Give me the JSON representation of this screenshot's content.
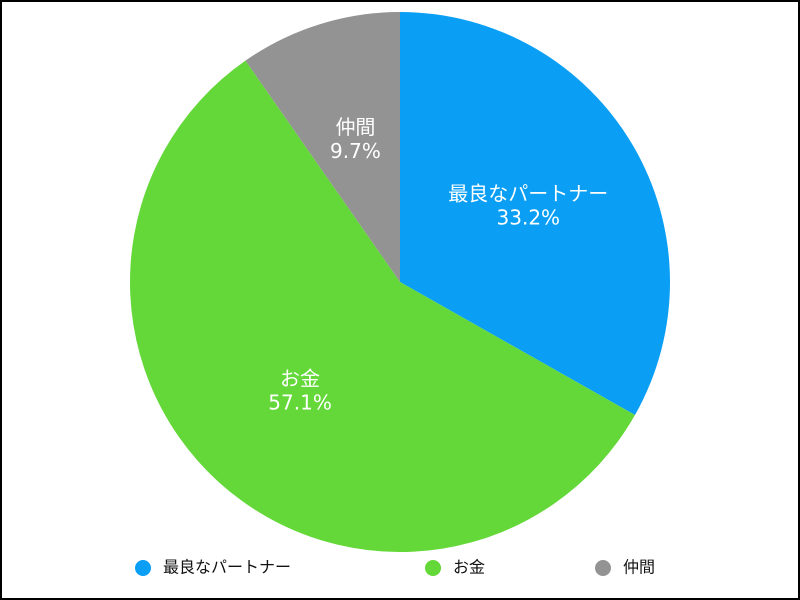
{
  "chart_data": {
    "type": "pie",
    "categories": [
      "最良なパートナー",
      "お金",
      "仲間"
    ],
    "values": [
      33.2,
      57.1,
      9.7
    ],
    "value_labels": [
      "33.2%",
      "57.1%",
      "9.7%"
    ],
    "colors": [
      "#0a9ff5",
      "#63d838",
      "#939393"
    ],
    "legend": "bottom"
  }
}
